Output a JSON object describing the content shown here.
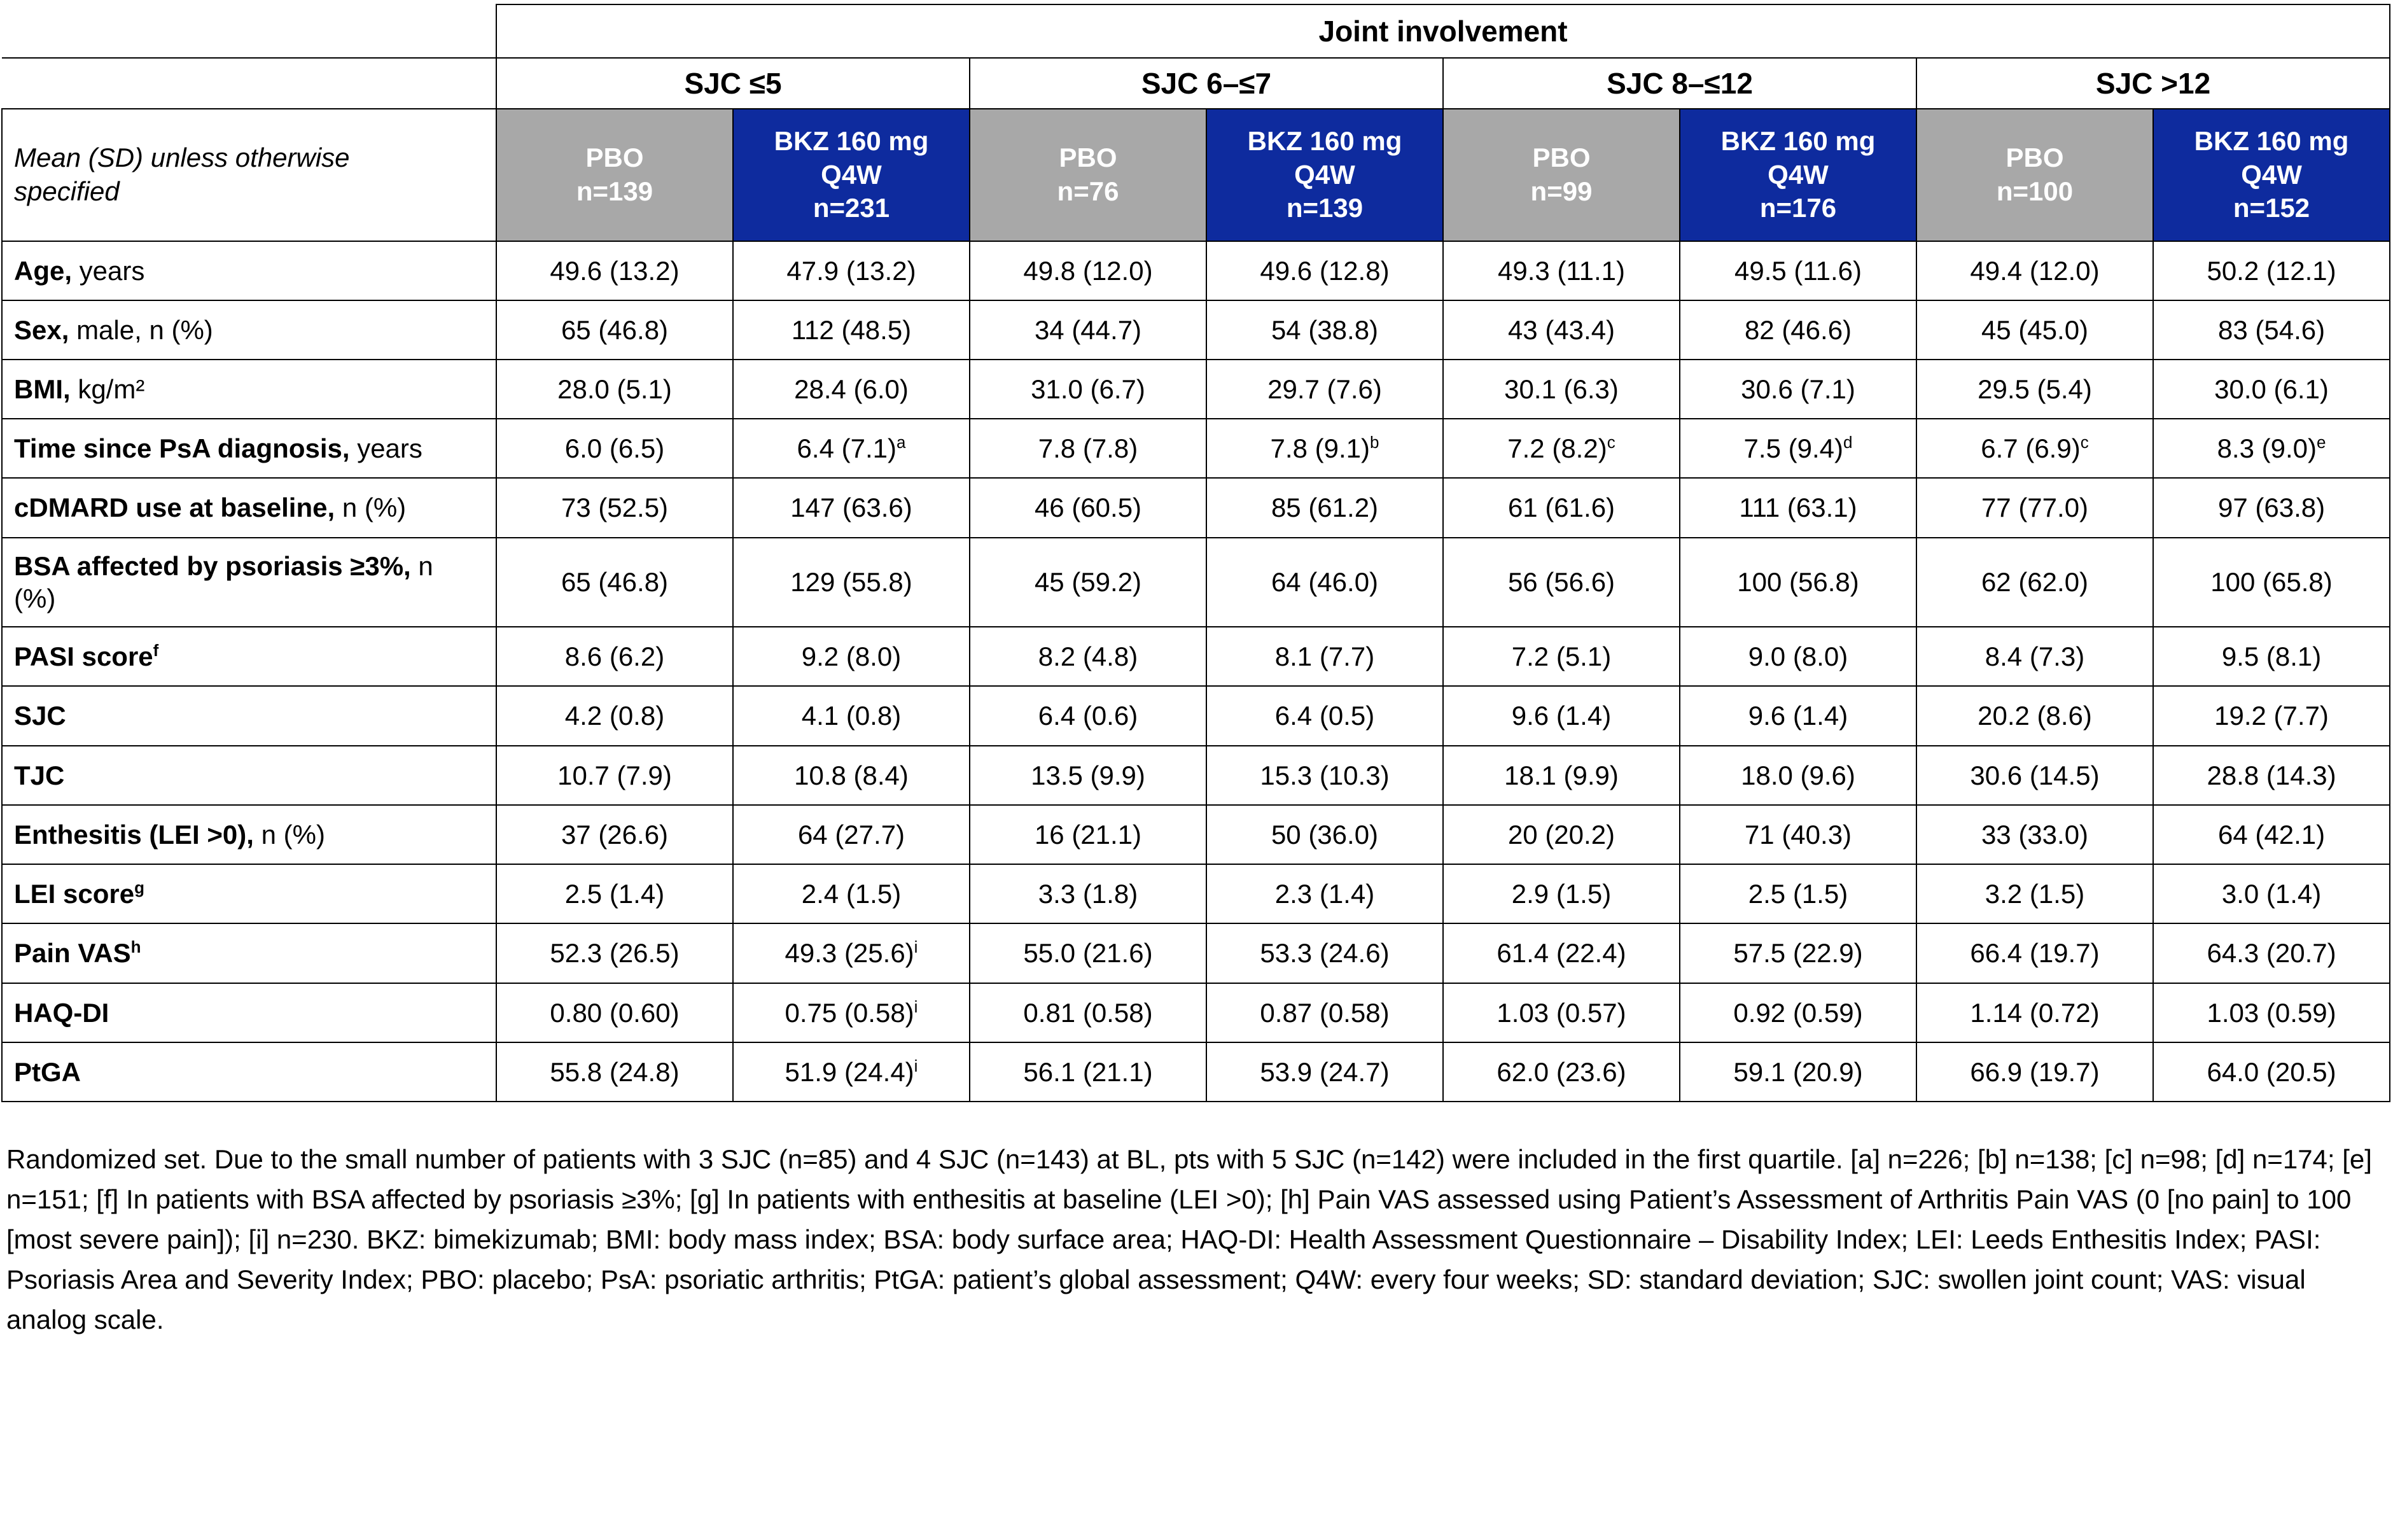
{
  "table": {
    "joint_involvement_header": "Joint involvement",
    "sjc_groups": [
      "SJC ≤5",
      "SJC 6–≤7",
      "SJC 8–≤12",
      "SJC >12"
    ],
    "corner_label": "Mean (SD) unless otherwise specified",
    "colors": {
      "pbo_header": "#a8a8a8",
      "bkz_header": "#0e2b9e",
      "header_text": "#ffffff",
      "border": "#000000"
    },
    "columns": [
      {
        "arm": "PBO",
        "n": "n=139",
        "type": "pbo"
      },
      {
        "arm": "BKZ 160 mg Q4W",
        "n": "n=231",
        "type": "bkz"
      },
      {
        "arm": "PBO",
        "n": "n=76",
        "type": "pbo"
      },
      {
        "arm": "BKZ 160 mg Q4W",
        "n": "n=139",
        "type": "bkz"
      },
      {
        "arm": "PBO",
        "n": "n=99",
        "type": "pbo"
      },
      {
        "arm": "BKZ 160 mg Q4W",
        "n": "n=176",
        "type": "bkz"
      },
      {
        "arm": "PBO",
        "n": "n=100",
        "type": "pbo"
      },
      {
        "arm": "BKZ 160 mg Q4W",
        "n": "n=152",
        "type": "bkz"
      }
    ],
    "rows": [
      {
        "label": {
          "bold": "Age,",
          "rest": " years"
        },
        "values": [
          {
            "v": "49.6 (13.2)"
          },
          {
            "v": "47.9 (13.2)"
          },
          {
            "v": "49.8 (12.0)"
          },
          {
            "v": "49.6 (12.8)"
          },
          {
            "v": "49.3 (11.1)"
          },
          {
            "v": "49.5 (11.6)"
          },
          {
            "v": "49.4 (12.0)"
          },
          {
            "v": "50.2 (12.1)"
          }
        ]
      },
      {
        "label": {
          "bold": "Sex,",
          "rest": " male, n (%)"
        },
        "values": [
          {
            "v": "65 (46.8)"
          },
          {
            "v": "112 (48.5)"
          },
          {
            "v": "34 (44.7)"
          },
          {
            "v": "54 (38.8)"
          },
          {
            "v": "43 (43.4)"
          },
          {
            "v": "82 (46.6)"
          },
          {
            "v": "45 (45.0)"
          },
          {
            "v": "83 (54.6)"
          }
        ]
      },
      {
        "label": {
          "bold": "BMI,",
          "rest": " kg/m²"
        },
        "values": [
          {
            "v": "28.0 (5.1)"
          },
          {
            "v": "28.4 (6.0)"
          },
          {
            "v": "31.0 (6.7)"
          },
          {
            "v": "29.7 (7.6)"
          },
          {
            "v": "30.1 (6.3)"
          },
          {
            "v": "30.6 (7.1)"
          },
          {
            "v": "29.5 (5.4)"
          },
          {
            "v": "30.0 (6.1)"
          }
        ]
      },
      {
        "label": {
          "bold": "Time since PsA diagnosis,",
          "rest": " years"
        },
        "values": [
          {
            "v": "6.0 (6.5)"
          },
          {
            "v": "6.4 (7.1)",
            "sup": "a"
          },
          {
            "v": "7.8 (7.8)"
          },
          {
            "v": "7.8 (9.1)",
            "sup": "b"
          },
          {
            "v": "7.2 (8.2)",
            "sup": "c"
          },
          {
            "v": "7.5 (9.4)",
            "sup": "d"
          },
          {
            "v": "6.7 (6.9)",
            "sup": "c"
          },
          {
            "v": "8.3 (9.0)",
            "sup": "e"
          }
        ]
      },
      {
        "label": {
          "bold": "cDMARD use at baseline,",
          "rest": " n (%)"
        },
        "values": [
          {
            "v": "73 (52.5)"
          },
          {
            "v": "147 (63.6)"
          },
          {
            "v": "46 (60.5)"
          },
          {
            "v": "85 (61.2)"
          },
          {
            "v": "61 (61.6)"
          },
          {
            "v": "111 (63.1)"
          },
          {
            "v": "77 (77.0)"
          },
          {
            "v": "97 (63.8)"
          }
        ]
      },
      {
        "label": {
          "bold": "BSA affected by psoriasis ≥3%,",
          "rest": " n (%)"
        },
        "values": [
          {
            "v": "65 (46.8)"
          },
          {
            "v": "129 (55.8)"
          },
          {
            "v": "45 (59.2)"
          },
          {
            "v": "64 (46.0)"
          },
          {
            "v": "56 (56.6)"
          },
          {
            "v": "100 (56.8)"
          },
          {
            "v": "62 (62.0)"
          },
          {
            "v": "100 (65.8)"
          }
        ]
      },
      {
        "label": {
          "bold": "PASI score",
          "sup": "f"
        },
        "values": [
          {
            "v": "8.6 (6.2)"
          },
          {
            "v": "9.2 (8.0)"
          },
          {
            "v": "8.2 (4.8)"
          },
          {
            "v": "8.1 (7.7)"
          },
          {
            "v": "7.2 (5.1)"
          },
          {
            "v": "9.0 (8.0)"
          },
          {
            "v": "8.4 (7.3)"
          },
          {
            "v": "9.5 (8.1)"
          }
        ]
      },
      {
        "label": {
          "bold": "SJC"
        },
        "values": [
          {
            "v": "4.2 (0.8)"
          },
          {
            "v": "4.1 (0.8)"
          },
          {
            "v": "6.4 (0.6)"
          },
          {
            "v": "6.4 (0.5)"
          },
          {
            "v": "9.6 (1.4)"
          },
          {
            "v": "9.6 (1.4)"
          },
          {
            "v": "20.2 (8.6)"
          },
          {
            "v": "19.2 (7.7)"
          }
        ]
      },
      {
        "label": {
          "bold": "TJC"
        },
        "values": [
          {
            "v": "10.7 (7.9)"
          },
          {
            "v": "10.8 (8.4)"
          },
          {
            "v": "13.5 (9.9)"
          },
          {
            "v": "15.3 (10.3)"
          },
          {
            "v": "18.1 (9.9)"
          },
          {
            "v": "18.0 (9.6)"
          },
          {
            "v": "30.6 (14.5)"
          },
          {
            "v": "28.8 (14.3)"
          }
        ]
      },
      {
        "label": {
          "bold": "Enthesitis (LEI >0),",
          "rest": " n (%)"
        },
        "values": [
          {
            "v": "37 (26.6)"
          },
          {
            "v": "64 (27.7)"
          },
          {
            "v": "16 (21.1)"
          },
          {
            "v": "50 (36.0)"
          },
          {
            "v": "20 (20.2)"
          },
          {
            "v": "71 (40.3)"
          },
          {
            "v": "33 (33.0)"
          },
          {
            "v": "64 (42.1)"
          }
        ]
      },
      {
        "label": {
          "bold": "LEI score",
          "sup": "g"
        },
        "values": [
          {
            "v": "2.5 (1.4)"
          },
          {
            "v": "2.4 (1.5)"
          },
          {
            "v": "3.3 (1.8)"
          },
          {
            "v": "2.3 (1.4)"
          },
          {
            "v": "2.9 (1.5)"
          },
          {
            "v": "2.5 (1.5)"
          },
          {
            "v": "3.2 (1.5)"
          },
          {
            "v": "3.0 (1.4)"
          }
        ]
      },
      {
        "label": {
          "bold": "Pain VAS",
          "sup": "h"
        },
        "values": [
          {
            "v": "52.3 (26.5)"
          },
          {
            "v": "49.3 (25.6)",
            "sup": "i"
          },
          {
            "v": "55.0 (21.6)"
          },
          {
            "v": "53.3 (24.6)"
          },
          {
            "v": "61.4 (22.4)"
          },
          {
            "v": "57.5 (22.9)"
          },
          {
            "v": "66.4 (19.7)"
          },
          {
            "v": "64.3 (20.7)"
          }
        ]
      },
      {
        "label": {
          "bold": "HAQ-DI"
        },
        "values": [
          {
            "v": "0.80 (0.60)"
          },
          {
            "v": "0.75 (0.58)",
            "sup": "i"
          },
          {
            "v": "0.81 (0.58)"
          },
          {
            "v": "0.87 (0.58)"
          },
          {
            "v": "1.03 (0.57)"
          },
          {
            "v": "0.92 (0.59)"
          },
          {
            "v": "1.14 (0.72)"
          },
          {
            "v": "1.03 (0.59)"
          }
        ]
      },
      {
        "label": {
          "bold": "PtGA"
        },
        "values": [
          {
            "v": "55.8 (24.8)"
          },
          {
            "v": "51.9 (24.4)",
            "sup": "i"
          },
          {
            "v": "56.1 (21.1)"
          },
          {
            "v": "53.9 (24.7)"
          },
          {
            "v": "62.0 (23.6)"
          },
          {
            "v": "59.1 (20.9)"
          },
          {
            "v": "66.9 (19.7)"
          },
          {
            "v": "64.0 (20.5)"
          }
        ]
      }
    ]
  },
  "footnote": {
    "text": "Randomized set. Due to the small number of patients with 3 SJC (n=85) and 4 SJC (n=143) at BL, pts with 5 SJC (n=142) were included in the first quartile. [a] n=226; [b] n=138; [c] n=98; [d] n=174; [e] n=151; [f] In patients with BSA affected by psoriasis ≥3%; [g] In patients with enthesitis at baseline (LEI >0); [h] Pain VAS assessed using Patient’s Assessment of Arthritis Pain VAS (0 [no pain] to 100 [most severe pain]); [i] n=230. BKZ: bimekizumab; BMI: body mass index; BSA: body surface area; HAQ-DI: Health Assessment Questionnaire – Disability Index; LEI: Leeds Enthesitis Index; PASI: Psoriasis Area and Severity Index; PBO: placebo; PsA: psoriatic arthritis; PtGA: patient’s global assessment; Q4W: every four weeks; SD: standard deviation; SJC: swollen joint count; VAS: visual analog scale."
  }
}
